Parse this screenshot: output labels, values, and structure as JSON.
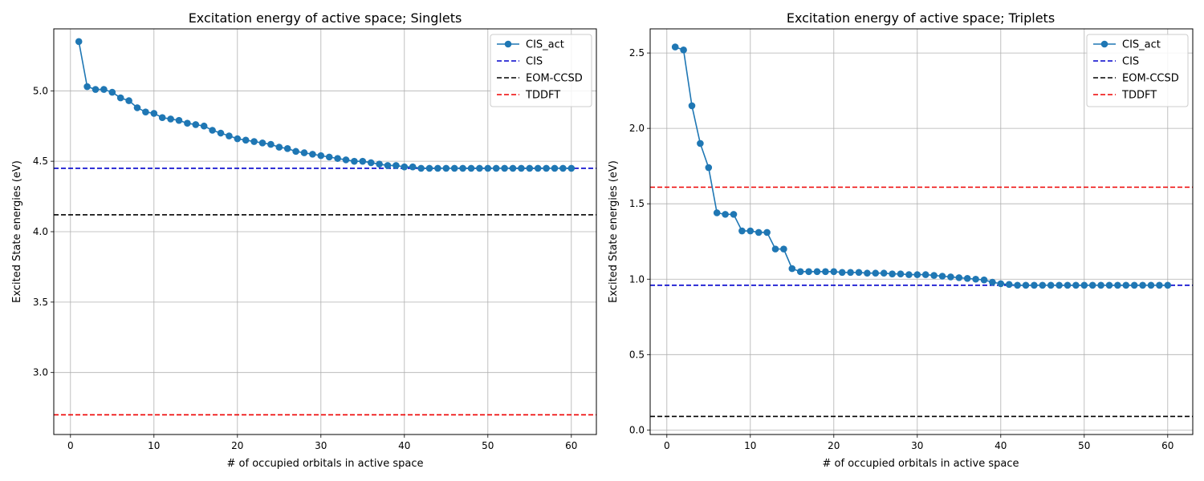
{
  "chart_data": [
    {
      "type": "line",
      "title": "Excitation energy of active space; Singlets",
      "xlabel": "# of occupied orbitals in active space",
      "ylabel": "Excited State energies (eV)",
      "xlim": [
        -2,
        63
      ],
      "ylim": [
        2.56,
        5.44
      ],
      "xticks": [
        0,
        10,
        20,
        30,
        40,
        50,
        60
      ],
      "yticks": [
        3.0,
        3.5,
        4.0,
        4.5,
        5.0
      ],
      "grid": true,
      "legend_position": "top-right",
      "series": [
        {
          "name": "CIS_act",
          "color": "#1f77b4",
          "marker": "circle",
          "x": [
            1,
            2,
            3,
            4,
            5,
            6,
            7,
            8,
            9,
            10,
            11,
            12,
            13,
            14,
            15,
            16,
            17,
            18,
            19,
            20,
            21,
            22,
            23,
            24,
            25,
            26,
            27,
            28,
            29,
            30,
            31,
            32,
            33,
            34,
            35,
            36,
            37,
            38,
            39,
            40,
            41,
            42,
            43,
            44,
            45,
            46,
            47,
            48,
            49,
            50,
            51,
            52,
            53,
            54,
            55,
            56,
            57,
            58,
            59,
            60
          ],
          "y": [
            5.35,
            5.03,
            5.01,
            5.01,
            4.99,
            4.95,
            4.93,
            4.88,
            4.85,
            4.84,
            4.81,
            4.8,
            4.79,
            4.77,
            4.76,
            4.75,
            4.72,
            4.7,
            4.68,
            4.66,
            4.65,
            4.64,
            4.63,
            4.62,
            4.6,
            4.59,
            4.57,
            4.56,
            4.55,
            4.54,
            4.53,
            4.52,
            4.51,
            4.5,
            4.5,
            4.49,
            4.48,
            4.47,
            4.47,
            4.46,
            4.46,
            4.45,
            4.45,
            4.45,
            4.45,
            4.45,
            4.45,
            4.45,
            4.45,
            4.45,
            4.45,
            4.45,
            4.45,
            4.45,
            4.45,
            4.45,
            4.45,
            4.45,
            4.45,
            4.45
          ]
        }
      ],
      "hlines": [
        {
          "name": "CIS",
          "y": 4.45,
          "color": "#0000cc"
        },
        {
          "name": "EOM-CCSD",
          "y": 4.12,
          "color": "#000000"
        },
        {
          "name": "TDDFT",
          "y": 2.7,
          "color": "#ee0000"
        }
      ]
    },
    {
      "type": "line",
      "title": "Excitation energy of active space; Triplets",
      "xlabel": "# of occupied orbitals in active space",
      "ylabel": "Excited State energies (eV)",
      "xlim": [
        -2,
        63
      ],
      "ylim": [
        -0.03,
        2.66
      ],
      "xticks": [
        0,
        10,
        20,
        30,
        40,
        50,
        60
      ],
      "yticks": [
        0.0,
        0.5,
        1.0,
        1.5,
        2.0,
        2.5
      ],
      "grid": true,
      "legend_position": "top-right",
      "series": [
        {
          "name": "CIS_act",
          "color": "#1f77b4",
          "marker": "circle",
          "x": [
            1,
            2,
            3,
            4,
            5,
            6,
            7,
            8,
            9,
            10,
            11,
            12,
            13,
            14,
            15,
            16,
            17,
            18,
            19,
            20,
            21,
            22,
            23,
            24,
            25,
            26,
            27,
            28,
            29,
            30,
            31,
            32,
            33,
            34,
            35,
            36,
            37,
            38,
            39,
            40,
            41,
            42,
            43,
            44,
            45,
            46,
            47,
            48,
            49,
            50,
            51,
            52,
            53,
            54,
            55,
            56,
            57,
            58,
            59,
            60
          ],
          "y": [
            2.54,
            2.52,
            2.15,
            1.9,
            1.74,
            1.44,
            1.43,
            1.43,
            1.32,
            1.32,
            1.31,
            1.31,
            1.2,
            1.2,
            1.07,
            1.05,
            1.05,
            1.05,
            1.05,
            1.05,
            1.045,
            1.045,
            1.045,
            1.04,
            1.04,
            1.04,
            1.035,
            1.035,
            1.03,
            1.03,
            1.03,
            1.025,
            1.02,
            1.015,
            1.01,
            1.005,
            1.0,
            0.995,
            0.98,
            0.97,
            0.965,
            0.96,
            0.96,
            0.96,
            0.96,
            0.96,
            0.96,
            0.96,
            0.96,
            0.96,
            0.96,
            0.96,
            0.96,
            0.96,
            0.96,
            0.96,
            0.96,
            0.96,
            0.96,
            0.96
          ]
        }
      ],
      "hlines": [
        {
          "name": "CIS",
          "y": 0.96,
          "color": "#0000cc"
        },
        {
          "name": "EOM-CCSD",
          "y": 0.09,
          "color": "#000000"
        },
        {
          "name": "TDDFT",
          "y": 1.61,
          "color": "#ee0000"
        }
      ]
    }
  ]
}
